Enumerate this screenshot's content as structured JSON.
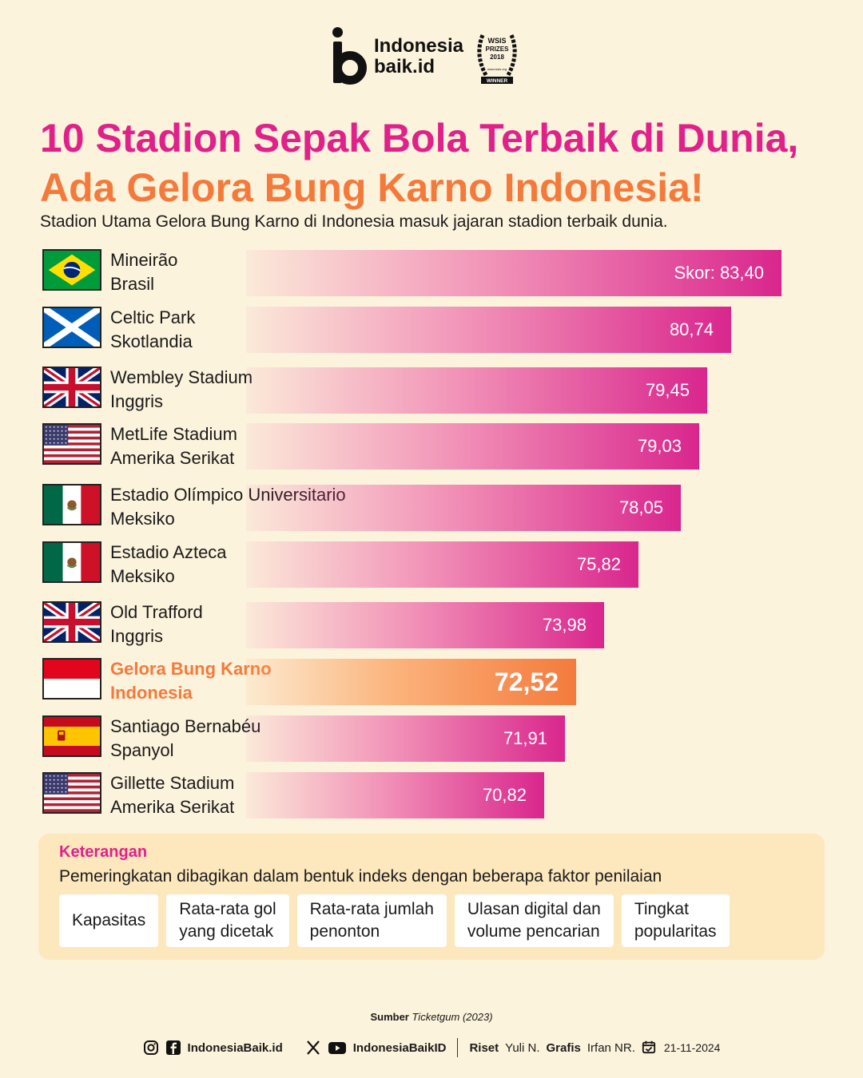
{
  "brand": {
    "name_line1": "Indonesia",
    "name_line2": "baik.id",
    "badge_line1": "WSIS",
    "badge_line2": "PRIZES",
    "badge_line3": "2018",
    "badge_line4": "WINNER",
    "badge_line5": "www.wsis.org"
  },
  "title_line1": "10 Stadion Sepak Bola Terbaik di Dunia,",
  "title_line2": "Ada Gelora Bung Karno Indonesia!",
  "subtitle": "Stadion Utama Gelora Bung Karno di Indonesia masuk jajaran stadion terbaik dunia.",
  "colors": {
    "accent_pink": "#e0218a",
    "accent_orange": "#f47a3c",
    "background": "#fcf3dc"
  },
  "chart_data": {
    "type": "bar",
    "orientation": "horizontal",
    "value_prefix_first": "Skor: ",
    "categories": [
      "Mineirão",
      "Celtic Park",
      "Wembley Stadium",
      "MetLife Stadium",
      "Estadio Olímpico Universitario",
      "Estadio Azteca",
      "Old Trafford",
      "Gelora Bung Karno",
      "Santiago Bernabéu",
      "Gillette Stadium"
    ],
    "countries": [
      "Brasil",
      "Skotlandia",
      "Inggris",
      "Amerika Serikat",
      "Meksiko",
      "Meksiko",
      "Inggris",
      "Indonesia",
      "Spanyol",
      "Amerika Serikat"
    ],
    "flags": [
      "brazil-flag",
      "scotland-flag",
      "uk-flag",
      "usa-flag",
      "mexico-flag",
      "mexico-flag",
      "uk-flag",
      "indonesia-flag",
      "spain-flag",
      "usa-flag"
    ],
    "values": [
      83.4,
      80.74,
      79.45,
      79.03,
      78.05,
      75.82,
      73.98,
      72.52,
      71.91,
      70.82
    ],
    "value_labels": [
      "83,40",
      "80,74",
      "79,45",
      "79,03",
      "78,05",
      "75,82",
      "73,98",
      "72,52",
      "71,91",
      "70,82"
    ],
    "highlight_index": 7
  },
  "legend": {
    "title": "Keterangan",
    "description": "Pemeringkatan dibagikan dalam bentuk indeks dengan beberapa faktor penilaian",
    "factors": [
      "Kapasitas",
      "Rata-rata gol\nyang dicetak",
      "Rata-rata jumlah\npenonton",
      "Ulasan digital dan\nvolume pencarian",
      "Tingkat\npopularitas"
    ]
  },
  "source": {
    "label": "Sumber",
    "name": "Ticketgum (2023)"
  },
  "footer": {
    "handle1": "IndonesiaBaik.id",
    "handle2": "IndonesiaBaikID",
    "research_label": "Riset",
    "research_name": "Yuli N.",
    "graphic_label": "Grafis",
    "graphic_name": "Irfan NR.",
    "date": "21-11-2024"
  }
}
